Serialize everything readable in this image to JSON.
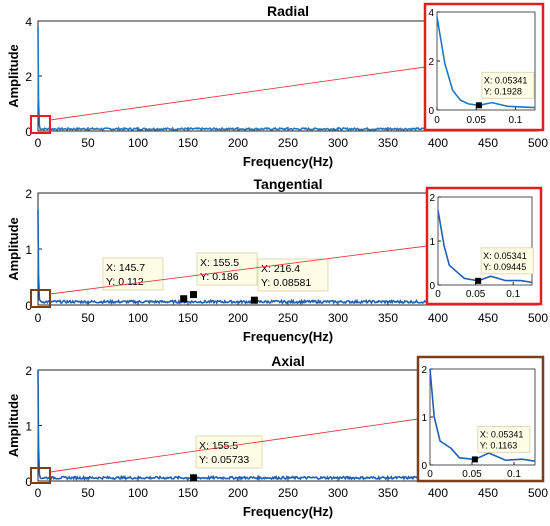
{
  "chart_data": [
    {
      "type": "line",
      "title": "Radial",
      "xlabel": "Frequency(Hz)",
      "ylabel": "Amplitude",
      "xlim": [
        0,
        500
      ],
      "ylim": [
        0,
        4
      ],
      "xticks": [
        "0",
        "50",
        "100",
        "150",
        "200",
        "250",
        "300",
        "350",
        "400",
        "450",
        "500"
      ],
      "yticks": [
        "0",
        "2",
        "4"
      ],
      "grid": false,
      "line_color": "#1f77c4",
      "box_color": "#e0201e",
      "callout_line_color": "#e04040",
      "series": [
        {
          "x": [
            0,
            0.01,
            0.02,
            0.03,
            0.04,
            0.05341,
            0.07,
            0.09,
            0.11,
            0.125
          ],
          "y": [
            3.8,
            1.9,
            0.8,
            0.4,
            0.25,
            0.1928,
            0.3,
            0.15,
            0.12,
            0.1
          ]
        }
      ],
      "datatips": [],
      "inset": {
        "xlim": [
          0,
          0.125
        ],
        "ylim": [
          0,
          4
        ],
        "xticks": [
          "0",
          "0.05",
          "0.1"
        ],
        "yticks": [
          "0",
          "2",
          "4"
        ],
        "datatips": [
          {
            "x": 0.05341,
            "y": 0.1928,
            "label_x": "X: 0.05341",
            "label_y": "Y: 0.1928"
          }
        ]
      }
    },
    {
      "type": "line",
      "title": "Tangential",
      "xlabel": "Frequency(Hz)",
      "ylabel": "Amplitude",
      "xlim": [
        0,
        500
      ],
      "ylim": [
        0,
        2
      ],
      "xticks": [
        "0",
        "50",
        "100",
        "150",
        "200",
        "250",
        "300",
        "350",
        "400",
        "450",
        "500"
      ],
      "yticks": [
        "0",
        "1",
        "2"
      ],
      "grid": false,
      "line_color": "#1f5fb4",
      "box_color": "#7a3e1a",
      "inset_box_color": "#e0201e",
      "callout_line_color": "#e04040",
      "series": [
        {
          "x": [
            0,
            0.008,
            0.015,
            0.025,
            0.035,
            0.05341,
            0.07,
            0.09,
            0.11,
            0.125
          ],
          "y": [
            1.7,
            0.9,
            0.45,
            0.3,
            0.15,
            0.09445,
            0.2,
            0.1,
            0.1,
            0.06
          ]
        }
      ],
      "datatips": [
        {
          "x": 145.7,
          "y": 0.112,
          "label_x": "X: 145.7",
          "label_y": "Y: 0.112"
        },
        {
          "x": 155.5,
          "y": 0.186,
          "label_x": "X: 155.5",
          "label_y": "Y: 0.186"
        },
        {
          "x": 216.4,
          "y": 0.08581,
          "label_x": "X: 216.4",
          "label_y": "Y: 0.08581"
        }
      ],
      "inset": {
        "xlim": [
          0,
          0.125
        ],
        "ylim": [
          0,
          2
        ],
        "xticks": [
          "0",
          "0.05",
          "0.1"
        ],
        "yticks": [
          "0",
          "1",
          "2"
        ],
        "datatips": [
          {
            "x": 0.05341,
            "y": 0.09445,
            "label_x": "X: 0.05341",
            "label_y": "Y: 0.09445"
          }
        ]
      }
    },
    {
      "type": "line",
      "title": "Axial",
      "xlabel": "Frequency(Hz)",
      "ylabel": "Amplitude",
      "xlim": [
        0,
        500
      ],
      "ylim": [
        0,
        2
      ],
      "xticks": [
        "0",
        "50",
        "100",
        "150",
        "200",
        "250",
        "300",
        "350",
        "400",
        "450",
        "500"
      ],
      "yticks": [
        "0",
        "1",
        "2"
      ],
      "grid": false,
      "line_color": "#1f5fb4",
      "box_color": "#7a3e1a",
      "inset_box_color": "#7a3e1a",
      "callout_line_color": "#e04040",
      "series": [
        {
          "x": [
            0,
            0.005,
            0.012,
            0.025,
            0.035,
            0.05341,
            0.07,
            0.09,
            0.11,
            0.125
          ],
          "y": [
            2.0,
            1.0,
            0.5,
            0.35,
            0.15,
            0.1163,
            0.25,
            0.1,
            0.12,
            0.08
          ]
        }
      ],
      "datatips": [
        {
          "x": 155.5,
          "y": 0.05733,
          "label_x": "X: 155.5",
          "label_y": "Y: 0.05733"
        }
      ],
      "inset": {
        "xlim": [
          0,
          0.125
        ],
        "ylim": [
          0,
          2
        ],
        "xticks": [
          "0",
          "0.05",
          "0.1"
        ],
        "yticks": [
          "0",
          "1",
          "2"
        ],
        "datatips": [
          {
            "x": 0.05341,
            "y": 0.1163,
            "label_x": "X: 0.05341",
            "label_y": "Y: 0.1163"
          }
        ]
      }
    }
  ]
}
